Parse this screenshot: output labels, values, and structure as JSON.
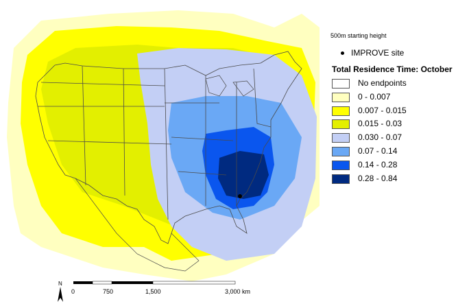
{
  "legend": {
    "starting_height": "500m starting height",
    "site_label": "IMPROVE site",
    "title": "Total Residence Time: October",
    "bins": [
      {
        "label": "No endpoints",
        "color": "#ffffff"
      },
      {
        "label": "0 - 0.007",
        "color": "#ffffc0"
      },
      {
        "label": "0.007 - 0.015",
        "color": "#ffff00"
      },
      {
        "label": "0.015 - 0.03",
        "color": "#e3ef00"
      },
      {
        "label": "0.030 - 0.07",
        "color": "#c3cff5"
      },
      {
        "label": "0.07 - 0.14",
        "color": "#6aa8f5"
      },
      {
        "label": "0.14 - 0.28",
        "color": "#0a56ee"
      },
      {
        "label": "0.28 - 0.84",
        "color": "#002a80"
      }
    ]
  },
  "scale_bar": {
    "ticks": [
      "0",
      "750",
      "1,500",
      "3,000 km"
    ]
  },
  "north_arrow": {
    "label": "N"
  },
  "colors": {
    "land_outline": "#4a4a4a",
    "site_dot": "#000000"
  }
}
